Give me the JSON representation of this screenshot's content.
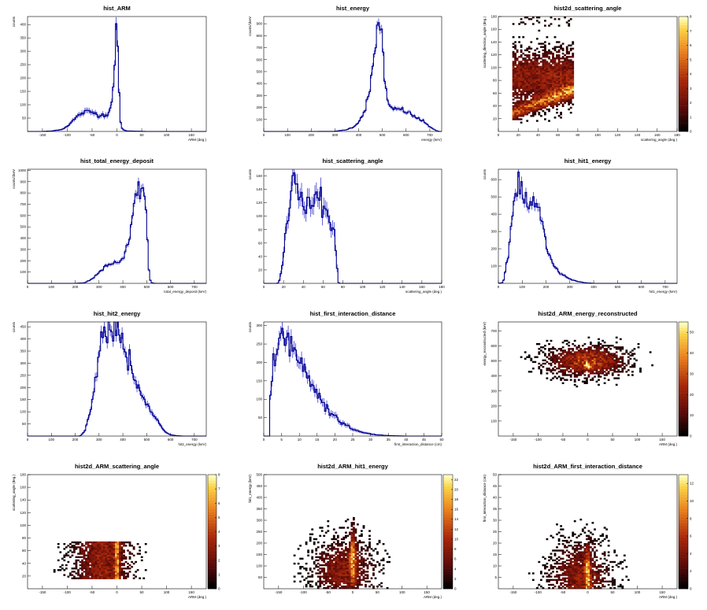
{
  "chart_data": [
    {
      "id": "arm",
      "type": "histogram",
      "title": "hist_ARM",
      "xlabel": "ARM (deg.)",
      "ylabel": "counts",
      "xlim": [
        -180,
        180
      ],
      "ylim": [
        0,
        430
      ],
      "xticks": [
        -150,
        -100,
        -50,
        0,
        50,
        100,
        150
      ],
      "yticks": [
        50,
        100,
        150,
        200,
        250,
        300,
        350,
        400
      ],
      "x": [
        -150,
        -130,
        -110,
        -100,
        -90,
        -80,
        -70,
        -60,
        -50,
        -40,
        -30,
        -20,
        -15,
        -10,
        -8,
        -6,
        -4,
        -2,
        0,
        2,
        4,
        6,
        8,
        10,
        14,
        20,
        40,
        60
      ],
      "y": [
        0,
        2,
        8,
        20,
        38,
        55,
        70,
        73,
        72,
        65,
        60,
        65,
        80,
        110,
        150,
        220,
        300,
        380,
        410,
        300,
        150,
        60,
        25,
        12,
        5,
        2,
        1,
        0
      ]
    },
    {
      "id": "energy",
      "type": "histogram",
      "title": "hist_energy",
      "xlabel": "energy (keV)",
      "ylabel": "counts/1keV",
      "xlim": [
        0,
        750
      ],
      "ylim": [
        0,
        960
      ],
      "xticks": [
        0,
        100,
        200,
        300,
        400,
        500,
        600,
        700
      ],
      "yticks": [
        100,
        200,
        300,
        400,
        500,
        600,
        700,
        800,
        900
      ],
      "x": [
        0,
        200,
        300,
        350,
        380,
        400,
        420,
        440,
        460,
        470,
        480,
        490,
        500,
        510,
        520,
        530,
        540,
        560,
        580,
        600,
        620,
        640,
        660,
        680,
        700,
        720,
        730,
        740
      ],
      "y": [
        0,
        0,
        1,
        15,
        40,
        80,
        150,
        280,
        500,
        700,
        880,
        900,
        760,
        450,
        260,
        200,
        180,
        190,
        180,
        170,
        140,
        120,
        100,
        70,
        40,
        15,
        5,
        0
      ]
    },
    {
      "id": "h2d_scat",
      "type": "heatmap",
      "title": "hist2d_scattering_angle",
      "xlabel": "scattering_angle (deg.)",
      "ylabel": "scattering_direction_angle (deg.)",
      "xlim": [
        0,
        180
      ],
      "ylim": [
        0,
        180
      ],
      "xticks": [
        0,
        20,
        40,
        60,
        80,
        100,
        120,
        140,
        160,
        180
      ],
      "yticks": [
        20,
        40,
        60,
        80,
        100,
        120,
        140,
        160,
        180
      ],
      "colorbar": [
        0,
        8
      ],
      "colorbar_ticks": [
        0,
        1,
        2,
        3,
        4,
        5,
        6,
        7,
        8
      ]
    },
    {
      "id": "ted",
      "type": "histogram",
      "title": "hist_total_energy_deposit",
      "xlabel": "total_energy_deposit (keV)",
      "ylabel": "counts/1keV",
      "xlim": [
        0,
        750
      ],
      "ylim": [
        0,
        1010
      ],
      "xticks": [
        0,
        100,
        200,
        300,
        400,
        500,
        600,
        700
      ],
      "yticks": [
        100,
        200,
        300,
        400,
        500,
        600,
        700,
        800,
        900,
        1000
      ],
      "x": [
        0,
        200,
        240,
        270,
        300,
        330,
        360,
        380,
        400,
        420,
        430,
        440,
        450,
        460,
        470,
        480,
        490,
        500,
        505,
        510,
        515,
        520,
        525,
        540
      ],
      "y": [
        0,
        0,
        5,
        40,
        100,
        150,
        180,
        170,
        210,
        310,
        400,
        600,
        750,
        830,
        970,
        960,
        800,
        550,
        300,
        100,
        30,
        8,
        2,
        0
      ]
    },
    {
      "id": "scat",
      "type": "histogram",
      "title": "hist_scattering_angle",
      "xlabel": "scattering_angle (deg.)",
      "ylabel": "counts",
      "xlim": [
        0,
        180
      ],
      "ylim": [
        0,
        170
      ],
      "xticks": [
        0,
        20,
        40,
        60,
        80,
        100,
        120,
        140,
        160,
        180
      ],
      "yticks": [
        20,
        40,
        60,
        80,
        100,
        120,
        140,
        160
      ],
      "x": [
        14,
        16,
        18,
        20,
        22,
        24,
        26,
        28,
        30,
        32,
        34,
        36,
        38,
        40,
        44,
        48,
        52,
        56,
        60,
        64,
        68,
        70,
        72,
        74,
        75,
        76
      ],
      "y": [
        0,
        5,
        20,
        40,
        70,
        95,
        115,
        140,
        150,
        160,
        145,
        135,
        125,
        115,
        120,
        110,
        125,
        130,
        115,
        100,
        90,
        85,
        60,
        30,
        5,
        0
      ]
    },
    {
      "id": "hit1",
      "type": "histogram",
      "title": "hist_hit1_energy",
      "xlabel": "hit1_energy (keV)",
      "ylabel": "counts",
      "xlim": [
        0,
        750
      ],
      "ylim": [
        0,
        660
      ],
      "xticks": [
        0,
        100,
        200,
        300,
        400,
        500,
        600,
        700
      ],
      "yticks": [
        100,
        200,
        300,
        400,
        500,
        600
      ],
      "x": [
        0,
        20,
        40,
        60,
        70,
        80,
        90,
        100,
        120,
        140,
        160,
        180,
        200,
        220,
        240,
        260,
        280,
        300,
        330,
        360,
        400
      ],
      "y": [
        0,
        5,
        150,
        380,
        550,
        620,
        560,
        520,
        460,
        490,
        470,
        380,
        230,
        140,
        90,
        60,
        40,
        25,
        12,
        4,
        0
      ]
    },
    {
      "id": "hit2",
      "type": "histogram",
      "title": "hist_hit2_energy",
      "xlabel": "hit2_energy (keV)",
      "ylabel": "counts",
      "xlim": [
        0,
        750
      ],
      "ylim": [
        0,
        470
      ],
      "xticks": [
        0,
        100,
        200,
        300,
        400,
        500,
        600,
        700
      ],
      "yticks": [
        50,
        100,
        150,
        200,
        250,
        300,
        350,
        400,
        450
      ],
      "x": [
        0,
        220,
        240,
        260,
        280,
        300,
        320,
        340,
        360,
        380,
        400,
        420,
        440,
        460,
        480,
        500,
        520,
        540,
        560,
        580,
        600,
        620,
        650
      ],
      "y": [
        0,
        0,
        20,
        90,
        200,
        330,
        420,
        440,
        440,
        450,
        390,
        310,
        250,
        210,
        170,
        130,
        100,
        70,
        40,
        15,
        5,
        2,
        0
      ]
    },
    {
      "id": "fid",
      "type": "histogram",
      "title": "hist_first_interaction_distance",
      "xlabel": "first_interaction_distance (cm)",
      "ylabel": "counts",
      "xlim": [
        0,
        50
      ],
      "ylim": [
        0,
        310
      ],
      "xticks": [
        0,
        5,
        10,
        15,
        20,
        25,
        30,
        35,
        40,
        45,
        50
      ],
      "yticks": [
        50,
        100,
        150,
        200,
        250,
        300
      ],
      "x": [
        0,
        1.5,
        2,
        3,
        4,
        5,
        6,
        7,
        8,
        9,
        10,
        12,
        14,
        16,
        18,
        20,
        22,
        24,
        26,
        28,
        30,
        32,
        34,
        36,
        40
      ],
      "y": [
        0,
        0,
        160,
        210,
        250,
        280,
        260,
        250,
        240,
        220,
        200,
        170,
        130,
        100,
        70,
        50,
        35,
        25,
        15,
        10,
        6,
        3,
        2,
        1,
        0
      ]
    },
    {
      "id": "h2d_arm_e",
      "type": "heatmap",
      "title": "hist2d_ARM_energy_reconstructed",
      "xlabel": "ARM (deg.)",
      "ylabel": "energy_reconstructed (keV)",
      "xlim": [
        -180,
        180
      ],
      "ylim": [
        0,
        760
      ],
      "xticks": [
        -150,
        -100,
        -50,
        0,
        50,
        100,
        150
      ],
      "yticks": [
        100,
        200,
        300,
        400,
        500,
        600,
        700
      ],
      "colorbar": [
        0,
        55
      ],
      "colorbar_ticks": [
        0,
        10,
        20,
        30,
        40,
        50
      ]
    },
    {
      "id": "h2d_arm_scat",
      "type": "heatmap",
      "title": "hist2d_ARM_scattering_angle",
      "xlabel": "ARM (deg.)",
      "ylabel": "scattering_angle (deg.)",
      "xlim": [
        -180,
        180
      ],
      "ylim": [
        0,
        180
      ],
      "xticks": [
        -150,
        -100,
        -50,
        0,
        50,
        100,
        150
      ],
      "yticks": [
        20,
        40,
        60,
        80,
        100,
        120,
        140,
        160,
        180
      ],
      "colorbar": [
        0,
        8
      ],
      "colorbar_ticks": [
        0,
        1,
        2,
        3,
        4,
        5,
        6,
        7,
        8
      ]
    },
    {
      "id": "h2d_arm_hit1",
      "type": "heatmap",
      "title": "hist2d_ARM_hit1_energy",
      "xlabel": "ARM (deg.)",
      "ylabel": "hit1_energy (keV)",
      "xlim": [
        -180,
        180
      ],
      "ylim": [
        0,
        500
      ],
      "xticks": [
        -150,
        -100,
        -50,
        0,
        50,
        100,
        150
      ],
      "yticks": [
        50,
        100,
        150,
        200,
        250,
        300,
        350,
        400,
        450,
        500
      ],
      "colorbar": [
        0,
        23
      ],
      "colorbar_ticks": [
        0,
        2,
        4,
        6,
        8,
        10,
        12,
        14,
        16,
        18,
        20,
        22
      ]
    },
    {
      "id": "h2d_arm_fid",
      "type": "heatmap",
      "title": "hist2d_ARM_first_interaction_distance",
      "xlabel": "ARM (deg.)",
      "ylabel": "first_interaction_distance (cm)",
      "xlim": [
        -180,
        180
      ],
      "ylim": [
        0,
        50
      ],
      "xticks": [
        -150,
        -100,
        -50,
        0,
        50,
        100,
        150
      ],
      "yticks": [
        5,
        10,
        15,
        20,
        25,
        30,
        35,
        40,
        45,
        50
      ],
      "colorbar": [
        0,
        13
      ],
      "colorbar_ticks": [
        0,
        2,
        4,
        6,
        8,
        10,
        12
      ]
    }
  ],
  "colors": {
    "line": "#00008b",
    "band": "#3a3ad0",
    "frame": "#000000",
    "background": "#ffffff"
  }
}
